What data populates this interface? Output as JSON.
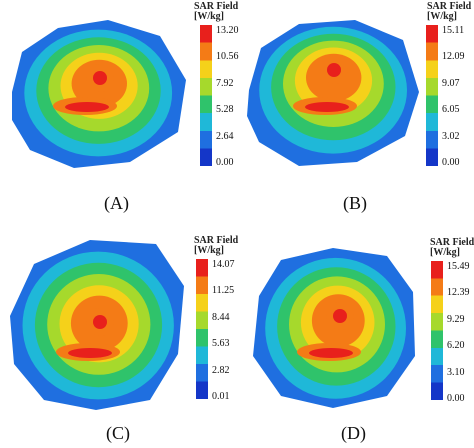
{
  "chart_data": [
    {
      "type": "heatmap",
      "caption": "(A)",
      "colorbar_title": "SAR Field",
      "colorbar_unit": "[W/kg]",
      "colorbar_ticks": [
        "13.20",
        "10.56",
        "7.92",
        "5.28",
        "2.64",
        "0.00"
      ],
      "range": [
        0.0,
        13.2
      ],
      "peak_location": "lower-center hotspot",
      "colors": [
        "#e8201c",
        "#f47b16",
        "#f5d11a",
        "#a6d92c",
        "#2fc36b",
        "#1fb8d8",
        "#1f6fe0",
        "#1436c8"
      ]
    },
    {
      "type": "heatmap",
      "caption": "(B)",
      "colorbar_title": "SAR Field",
      "colorbar_unit": "[W/kg]",
      "colorbar_ticks": [
        "15.11",
        "12.09",
        "9.07",
        "6.05",
        "3.02",
        "0.00"
      ],
      "range": [
        0.0,
        15.11
      ],
      "peak_location": "lower-center hotspot",
      "colors": [
        "#e8201c",
        "#f47b16",
        "#f5d11a",
        "#a6d92c",
        "#2fc36b",
        "#1fb8d8",
        "#1f6fe0",
        "#1436c8"
      ]
    },
    {
      "type": "heatmap",
      "caption": "(C)",
      "colorbar_title": "SAR Field",
      "colorbar_unit": "[W/kg]",
      "colorbar_ticks": [
        "14.07",
        "11.25",
        "8.44",
        "5.63",
        "2.82",
        "0.01"
      ],
      "range": [
        0.01,
        14.07
      ],
      "peak_location": "center hotspot",
      "colors": [
        "#e8201c",
        "#f47b16",
        "#f5d11a",
        "#a6d92c",
        "#2fc36b",
        "#1fb8d8",
        "#1f6fe0",
        "#1436c8"
      ]
    },
    {
      "type": "heatmap",
      "caption": "(D)",
      "colorbar_title": "SAR Field",
      "colorbar_unit": "[W/kg]",
      "colorbar_ticks": [
        "15.49",
        "12.39",
        "9.29",
        "6.20",
        "3.10",
        "0.00"
      ],
      "range": [
        0.0,
        15.49
      ],
      "peak_location": "lower-center hotspot",
      "colors": [
        "#e8201c",
        "#f47b16",
        "#f5d11a",
        "#a6d92c",
        "#2fc36b",
        "#1fb8d8",
        "#1f6fe0",
        "#1436c8"
      ]
    }
  ]
}
